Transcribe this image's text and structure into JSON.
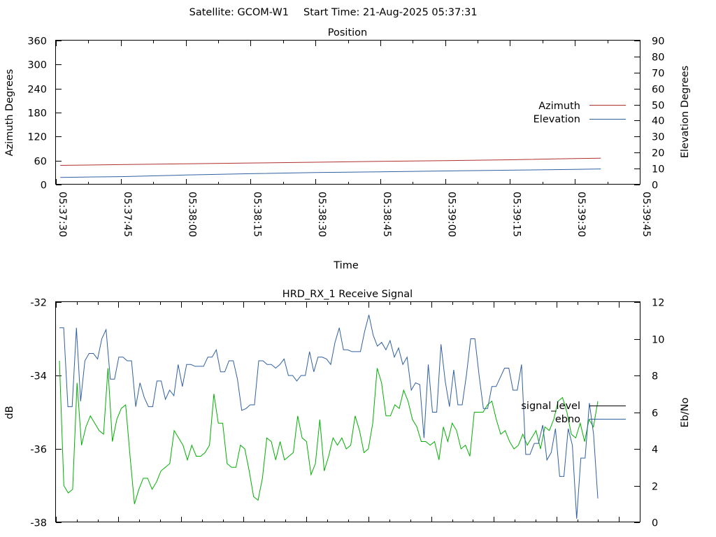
{
  "header": {
    "satellite_label": "Satellite: GCOM-W1",
    "start_time_label": "Start Time: 21-Aug-2025 05:37:31"
  },
  "chart_data": [
    {
      "type": "line",
      "title": "Position",
      "xlabel": "Time",
      "ylabel": "Azimuth Degrees",
      "y2label": "Elevation Degrees",
      "ylim": [
        0,
        360
      ],
      "y2lim": [
        0,
        90
      ],
      "x_tick_labels": [
        "05:37:30",
        "05:37:45",
        "05:38:00",
        "05:38:15",
        "05:38:30",
        "05:38:45",
        "05:39:00",
        "05:39:15",
        "05:39:30",
        "05:39:45"
      ],
      "y_tick_labels": [
        "0",
        "60",
        "120",
        "180",
        "240",
        "300",
        "360"
      ],
      "y2_tick_labels": [
        "0",
        "10",
        "20",
        "30",
        "40",
        "50",
        "60",
        "70",
        "80",
        "90"
      ],
      "xlim_seconds_after_05_37_30": [
        0,
        135
      ],
      "grid": false,
      "legend_position": "right",
      "series": [
        {
          "name": "Azimuth",
          "axis": "left",
          "color": "#b03030",
          "x": [
            "05:37:31",
            "05:37:45",
            "05:38:00",
            "05:38:15",
            "05:38:30",
            "05:38:45",
            "05:39:00",
            "05:39:15",
            "05:39:30",
            "05:39:36"
          ],
          "values": [
            48,
            50,
            52,
            54,
            56,
            58,
            60,
            62,
            65,
            66
          ]
        },
        {
          "name": "Elevation",
          "axis": "right",
          "color": "#3060a0",
          "x": [
            "05:37:31",
            "05:37:45",
            "05:38:00",
            "05:38:15",
            "05:38:30",
            "05:38:45",
            "05:39:00",
            "05:39:15",
            "05:39:30",
            "05:39:36"
          ],
          "values": [
            4.5,
            5,
            6,
            6.8,
            7.5,
            8,
            8.5,
            9,
            9.5,
            9.8
          ]
        }
      ]
    },
    {
      "type": "line",
      "title": "HRD_RX_1 Receive Signal",
      "ylabel": "dB",
      "y2label": "Eb/No",
      "ylim": [
        -38,
        -32
      ],
      "y2lim": [
        0,
        12
      ],
      "y_tick_labels": [
        "-38",
        "-36",
        "-34",
        "-32"
      ],
      "y2_tick_labels": [
        "0",
        "2",
        "4",
        "6",
        "8",
        "10",
        "12"
      ],
      "x_tick_count": 28,
      "grid": false,
      "legend_position": "right",
      "legend": [
        {
          "name": "signal_level",
          "color": "#000000"
        },
        {
          "name": "ebno",
          "color": "#3060a0"
        }
      ],
      "series": [
        {
          "name": "",
          "axis": "left",
          "color": "#00b000",
          "values": [
            -33.6,
            -37.0,
            -37.2,
            -37.1,
            -34.2,
            -35.9,
            -35.4,
            -35.1,
            -35.3,
            -35.5,
            -35.6,
            -33.8,
            -35.8,
            -35.2,
            -34.9,
            -34.8,
            -36.2,
            -37.5,
            -37.1,
            -36.8,
            -36.8,
            -37.1,
            -36.9,
            -36.6,
            -36.5,
            -36.4,
            -35.5,
            -35.7,
            -35.9,
            -36.3,
            -35.9,
            -36.2,
            -36.2,
            -36.1,
            -35.9,
            -34.5,
            -35.3,
            -35.3,
            -36.4,
            -36.5,
            -36.5,
            -35.9,
            -36.0,
            -36.6,
            -37.3,
            -37.4,
            -36.8,
            -35.7,
            -35.8,
            -36.3,
            -35.8,
            -36.3,
            -36.2,
            -36.1,
            -35.1,
            -35.7,
            -35.8,
            -36.7,
            -36.4,
            -35.2,
            -36.6,
            -36.2,
            -35.7,
            -35.9,
            -35.7,
            -36.0,
            -35.9,
            -35.1,
            -35.5,
            -36.1,
            -36.0,
            -35.3,
            -33.8,
            -34.2,
            -35.1,
            -35.1,
            -34.8,
            -34.9,
            -34.4,
            -34.7,
            -35.2,
            -35.4,
            -35.8,
            -35.8,
            -35.9,
            -35.8,
            -36.3,
            -35.4,
            -35.8,
            -35.3,
            -35.5,
            -36.0,
            -35.9,
            -36.2,
            -35.0,
            -35.0,
            -35.0,
            -34.8,
            -34.7,
            -35.2,
            -35.6,
            -35.5,
            -35.8,
            -36.0,
            -35.9,
            -35.6,
            -35.9,
            -35.7,
            -35.5,
            -36.0,
            -35.4,
            -35.5,
            -35.2,
            -34.7,
            -34.6,
            -35.0,
            -35.6,
            -35.7,
            -35.3,
            -35.8,
            -35.2,
            -35.4,
            -34.7
          ]
        },
        {
          "name": "ebno",
          "axis": "right",
          "color": "#3060a0",
          "values": [
            10.6,
            10.6,
            6.3,
            6.3,
            10.6,
            6.6,
            8.8,
            9.2,
            9.2,
            8.9,
            10.0,
            10.5,
            7.8,
            7.8,
            9.0,
            9.0,
            8.8,
            8.8,
            6.3,
            7.6,
            6.8,
            6.3,
            6.3,
            7.7,
            7.7,
            6.7,
            7.2,
            6.9,
            8.6,
            7.4,
            8.6,
            8.6,
            8.5,
            8.5,
            8.5,
            9.0,
            9.0,
            9.4,
            8.2,
            8.2,
            8.8,
            8.8,
            7.8,
            6.1,
            6.2,
            6.4,
            6.4,
            8.8,
            8.8,
            8.6,
            8.6,
            8.4,
            8.6,
            8.9,
            8.0,
            8.0,
            7.7,
            8.0,
            8.0,
            9.3,
            8.2,
            9.0,
            9.0,
            8.9,
            8.6,
            9.8,
            10.6,
            9.4,
            9.4,
            9.3,
            9.3,
            9.3,
            10.4,
            11.3,
            10.2,
            9.6,
            9.8,
            9.4,
            9.9,
            9.0,
            9.5,
            8.6,
            9.0,
            7.2,
            7.6,
            7.5,
            4.6,
            8.6,
            6.0,
            6.0,
            9.7,
            7.7,
            6.3,
            8.3,
            6.4,
            6.4,
            8.0,
            10.0,
            10.0,
            8.0,
            6.2,
            6.2,
            7.4,
            7.4,
            7.9,
            8.4,
            8.4,
            7.2,
            7.2,
            8.6,
            3.7,
            3.7,
            4.3,
            4.3,
            5.3,
            3.4,
            3.8,
            5.1,
            2.5,
            2.5,
            5.1,
            4.2,
            0.2,
            3.5,
            3.5,
            6.5,
            4.8,
            1.3
          ]
        }
      ]
    }
  ]
}
